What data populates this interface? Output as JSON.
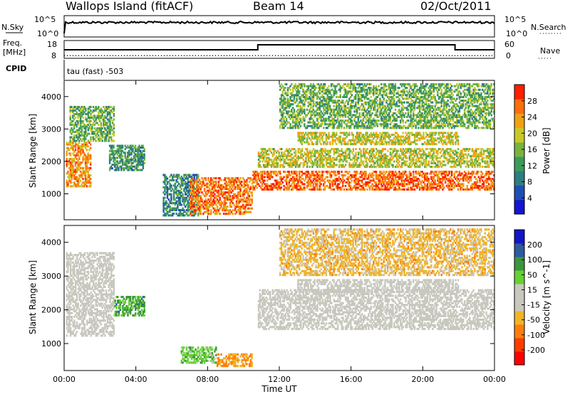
{
  "header": {
    "station": "Wallops Island (fitACF)",
    "beam": "Beam 14",
    "date": "02/Oct/2011"
  },
  "top_panels": {
    "nsky_label": "N.Sky",
    "nsearch_label": "N.Search",
    "noise_ticks": [
      "10^5",
      "10^0"
    ],
    "freq_label_1": "Freq.",
    "freq_label_2": "[MHz]",
    "freq_ticks": [
      "18",
      "8"
    ],
    "nave_label": "Nave",
    "nave_ticks": [
      "60",
      "0"
    ],
    "cpid_label": "CPID",
    "cpid_value": "tau (fast) -503"
  },
  "colors": {
    "power": [
      "#1414d2",
      "#1e50b4",
      "#2d7d82",
      "#3c9b5a",
      "#78b43c",
      "#c8c828",
      "#f0a014",
      "#ff6e0a",
      "#ff1e00"
    ],
    "velocity": [
      "#1414c8",
      "#2d5aa0",
      "#3c963c",
      "#64d232",
      "#c8c8be",
      "#c8c8be",
      "#f0b428",
      "#ff7d0a",
      "#ff3c00",
      "#ff0000"
    ]
  },
  "chart_data": [
    {
      "type": "heatmap",
      "name": "power",
      "ylabel": "Slant Range [km]",
      "yticks": [
        "1000",
        "2000",
        "3000",
        "4000"
      ],
      "ylim": [
        200,
        4500
      ],
      "colorbar_label": "Power [dB]",
      "colorbar_ticks": [
        "4",
        "8",
        "12",
        "16",
        "20",
        "24",
        "28"
      ],
      "colorbar_range": [
        0,
        32
      ],
      "regions": [
        {
          "t0": 0.1,
          "t1": 1.5,
          "r0": 1200,
          "r1": 2600,
          "level": 0.78
        },
        {
          "t0": 0.3,
          "t1": 2.8,
          "r0": 2600,
          "r1": 3700,
          "level": 0.45
        },
        {
          "t0": 2.5,
          "t1": 4.5,
          "r0": 1700,
          "r1": 2500,
          "level": 0.35
        },
        {
          "t0": 5.5,
          "t1": 7.5,
          "r0": 300,
          "r1": 1600,
          "level": 0.3
        },
        {
          "t0": 7.0,
          "t1": 10.5,
          "r0": 350,
          "r1": 1500,
          "level": 0.85
        },
        {
          "t0": 10.5,
          "t1": 24.0,
          "r0": 1100,
          "r1": 1700,
          "level": 0.88
        },
        {
          "t0": 10.8,
          "t1": 24.0,
          "r0": 1800,
          "r1": 2400,
          "level": 0.6
        },
        {
          "t0": 13.0,
          "t1": 22.0,
          "r0": 2500,
          "r1": 2900,
          "level": 0.62
        },
        {
          "t0": 12.0,
          "t1": 24.0,
          "r0": 3000,
          "r1": 4400,
          "level": 0.45
        }
      ]
    },
    {
      "type": "heatmap",
      "name": "velocity",
      "ylabel": "Slant Range [km]",
      "yticks": [
        "1000",
        "2000",
        "3000",
        "4000"
      ],
      "ylim": [
        200,
        4500
      ],
      "colorbar_label": "Velocity [m s^-1]",
      "colorbar_ticks": [
        "200",
        "100",
        "50",
        "15",
        "-15",
        "-50",
        "-100",
        "-200"
      ],
      "colorbar_range": [
        -250,
        250
      ],
      "xlabel": "Time UT",
      "xticks": [
        "00:00",
        "04:00",
        "08:00",
        "12:00",
        "16:00",
        "20:00",
        "00:00"
      ],
      "xlim": [
        0,
        24
      ],
      "regions": [
        {
          "t0": 0.1,
          "t1": 2.8,
          "r0": 1200,
          "r1": 3700,
          "level": 0.0
        },
        {
          "t0": 2.8,
          "t1": 4.5,
          "r0": 1800,
          "r1": 2400,
          "level": 0.5
        },
        {
          "t0": 6.5,
          "t1": 8.5,
          "r0": 400,
          "r1": 900,
          "level": 0.35
        },
        {
          "t0": 8.5,
          "t1": 10.5,
          "r0": 300,
          "r1": 700,
          "level": -0.45
        },
        {
          "t0": 10.8,
          "t1": 24.0,
          "r0": 1400,
          "r1": 2600,
          "level": 0.0
        },
        {
          "t0": 13.0,
          "t1": 22.0,
          "r0": 2500,
          "r1": 2900,
          "level": 0.0
        },
        {
          "t0": 12.0,
          "t1": 24.0,
          "r0": 3000,
          "r1": 4400,
          "level": -0.3
        }
      ]
    }
  ],
  "traces": {
    "freq_switch_hours": [
      10.8,
      21.8
    ],
    "nave_level": 0.15
  }
}
